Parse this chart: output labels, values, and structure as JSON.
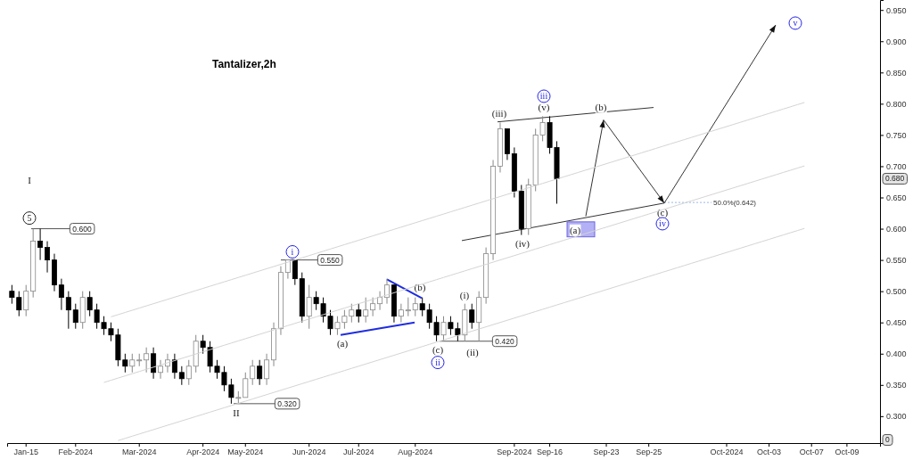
{
  "chart_data": {
    "type": "candlestick",
    "title": "Tantalizer,2h",
    "categories": [
      null,
      null,
      "Jan-15",
      null,
      null,
      null,
      null,
      null,
      null,
      "Feb-2024",
      null,
      null,
      null,
      null,
      null,
      null,
      null,
      null,
      "Mar-2024",
      null,
      null,
      null,
      null,
      null,
      null,
      null,
      null,
      "Apr-2024",
      null,
      null,
      null,
      null,
      null,
      "May-2024",
      null,
      null,
      null,
      null,
      null,
      null,
      null,
      null,
      "Jun-2024",
      null,
      null,
      null,
      null,
      null,
      null,
      "Jul-2024",
      null,
      null,
      null,
      null,
      null,
      null,
      null,
      "Aug-2024",
      null,
      null,
      null,
      null,
      null,
      null,
      null,
      null,
      null,
      null,
      null,
      null,
      null,
      "Sep-2024",
      null,
      null,
      null,
      null,
      "Sep-16",
      null,
      null,
      null,
      null,
      null,
      null,
      null,
      "Sep-23",
      null,
      null,
      null,
      null,
      null,
      "Sep-25",
      null,
      null,
      null,
      null,
      null,
      null,
      null,
      null,
      null,
      null,
      "Oct-2024",
      null,
      null,
      null,
      null,
      null,
      "Oct-03",
      null,
      null,
      null,
      null,
      null,
      "Oct-07",
      null,
      null,
      null,
      null,
      "Oct-09",
      null,
      null,
      null,
      null
    ],
    "ohlc": [
      [
        0.5,
        0.51,
        0.48,
        0.49
      ],
      [
        0.49,
        0.5,
        0.46,
        0.47
      ],
      [
        0.47,
        0.51,
        0.46,
        0.5
      ],
      [
        0.5,
        0.6,
        0.49,
        0.58
      ],
      [
        0.58,
        0.6,
        0.55,
        0.57
      ],
      [
        0.57,
        0.58,
        0.53,
        0.55
      ],
      [
        0.55,
        0.56,
        0.5,
        0.51
      ],
      [
        0.51,
        0.52,
        0.47,
        0.49
      ],
      [
        0.49,
        0.5,
        0.44,
        0.47
      ],
      [
        0.47,
        0.48,
        0.44,
        0.45
      ],
      [
        0.45,
        0.5,
        0.44,
        0.49
      ],
      [
        0.49,
        0.5,
        0.46,
        0.47
      ],
      [
        0.47,
        0.48,
        0.44,
        0.45
      ],
      [
        0.45,
        0.46,
        0.43,
        0.44
      ],
      [
        0.44,
        0.45,
        0.42,
        0.43
      ],
      [
        0.43,
        0.44,
        0.38,
        0.39
      ],
      [
        0.39,
        0.4,
        0.37,
        0.38
      ],
      [
        0.38,
        0.4,
        0.37,
        0.39
      ],
      [
        0.39,
        0.4,
        0.38,
        0.39
      ],
      [
        0.39,
        0.41,
        0.37,
        0.4
      ],
      [
        0.4,
        0.41,
        0.36,
        0.37
      ],
      [
        0.37,
        0.39,
        0.36,
        0.38
      ],
      [
        0.38,
        0.4,
        0.37,
        0.39
      ],
      [
        0.39,
        0.4,
        0.36,
        0.37
      ],
      [
        0.37,
        0.38,
        0.35,
        0.36
      ],
      [
        0.36,
        0.39,
        0.35,
        0.38
      ],
      [
        0.38,
        0.43,
        0.37,
        0.42
      ],
      [
        0.42,
        0.43,
        0.4,
        0.41
      ],
      [
        0.41,
        0.42,
        0.37,
        0.38
      ],
      [
        0.38,
        0.39,
        0.36,
        0.37
      ],
      [
        0.37,
        0.38,
        0.34,
        0.35
      ],
      [
        0.35,
        0.36,
        0.32,
        0.33
      ],
      [
        0.33,
        0.34,
        0.32,
        0.33
      ],
      [
        0.33,
        0.37,
        0.33,
        0.36
      ],
      [
        0.36,
        0.39,
        0.35,
        0.38
      ],
      [
        0.38,
        0.39,
        0.35,
        0.36
      ],
      [
        0.36,
        0.4,
        0.35,
        0.39
      ],
      [
        0.39,
        0.45,
        0.38,
        0.44
      ],
      [
        0.44,
        0.54,
        0.43,
        0.53
      ],
      [
        0.53,
        0.55,
        0.52,
        0.55
      ],
      [
        0.55,
        0.55,
        0.51,
        0.52
      ],
      [
        0.52,
        0.53,
        0.45,
        0.46
      ],
      [
        0.46,
        0.51,
        0.44,
        0.49
      ],
      [
        0.49,
        0.5,
        0.47,
        0.48
      ],
      [
        0.48,
        0.49,
        0.45,
        0.46
      ],
      [
        0.46,
        0.47,
        0.43,
        0.44
      ],
      [
        0.44,
        0.46,
        0.43,
        0.45
      ],
      [
        0.45,
        0.47,
        0.44,
        0.46
      ],
      [
        0.46,
        0.48,
        0.45,
        0.47
      ],
      [
        0.47,
        0.48,
        0.45,
        0.46
      ],
      [
        0.46,
        0.49,
        0.45,
        0.47
      ],
      [
        0.47,
        0.49,
        0.46,
        0.48
      ],
      [
        0.48,
        0.5,
        0.47,
        0.49
      ],
      [
        0.49,
        0.52,
        0.48,
        0.51
      ],
      [
        0.51,
        0.51,
        0.45,
        0.46
      ],
      [
        0.46,
        0.48,
        0.45,
        0.47
      ],
      [
        0.47,
        0.49,
        0.46,
        0.47
      ],
      [
        0.47,
        0.49,
        0.46,
        0.48
      ],
      [
        0.48,
        0.49,
        0.46,
        0.47
      ],
      [
        0.47,
        0.48,
        0.44,
        0.45
      ],
      [
        0.45,
        0.46,
        0.42,
        0.43
      ],
      [
        0.43,
        0.46,
        0.42,
        0.45
      ],
      [
        0.45,
        0.46,
        0.43,
        0.44
      ],
      [
        0.44,
        0.45,
        0.42,
        0.43
      ],
      [
        0.43,
        0.48,
        0.42,
        0.47
      ],
      [
        0.47,
        0.48,
        0.44,
        0.45
      ],
      [
        0.45,
        0.5,
        0.42,
        0.49
      ],
      [
        0.49,
        0.57,
        0.48,
        0.56
      ],
      [
        0.56,
        0.71,
        0.55,
        0.7
      ],
      [
        0.7,
        0.77,
        0.69,
        0.76
      ],
      [
        0.76,
        0.76,
        0.71,
        0.72
      ],
      [
        0.72,
        0.73,
        0.65,
        0.66
      ],
      [
        0.66,
        0.67,
        0.59,
        0.6
      ],
      [
        0.6,
        0.68,
        0.59,
        0.67
      ],
      [
        0.67,
        0.76,
        0.66,
        0.75
      ],
      [
        0.75,
        0.78,
        0.74,
        0.77
      ],
      [
        0.77,
        0.78,
        0.72,
        0.73
      ],
      [
        0.73,
        0.74,
        0.64,
        0.68
      ],
      null,
      null,
      null,
      null,
      null,
      null,
      null,
      null,
      null,
      null,
      null,
      null,
      null,
      null,
      null,
      null,
      null,
      null,
      null,
      null,
      null,
      null,
      null,
      null,
      null,
      null,
      null,
      null,
      null,
      null,
      null,
      null,
      null,
      null,
      null,
      null,
      null,
      null,
      null,
      null,
      null,
      null,
      null,
      null,
      null
    ],
    "series": [
      {
        "type": "line",
        "color": "#d4d4d4",
        "values": [
          null,
          null,
          null,
          null,
          null,
          null,
          null,
          null,
          null,
          null,
          null,
          null,
          null,
          null,
          0.459,
          0.4625,
          0.466,
          0.4695,
          0.473,
          0.4765,
          0.48,
          0.4835,
          0.487,
          0.4905,
          0.494,
          0.4975,
          0.501,
          0.5045,
          0.508,
          0.5115,
          0.515,
          0.5185,
          0.522,
          0.5255,
          0.529,
          0.5325,
          0.536,
          0.5395,
          0.543,
          0.5465,
          0.55,
          0.5535,
          0.557,
          0.5605,
          0.564,
          0.5675,
          0.571,
          0.5745,
          0.578,
          0.5815,
          0.585,
          0.5885,
          0.592,
          0.5955,
          0.599,
          0.6025,
          0.606,
          0.6095,
          0.613,
          0.6165,
          0.62,
          0.6235,
          0.627,
          0.6305,
          0.634,
          0.6375,
          0.641,
          0.6445,
          0.648,
          0.6515,
          0.655,
          0.6585,
          0.662,
          0.6655,
          0.669,
          0.6725,
          0.676,
          0.6795,
          0.683,
          0.6865,
          0.69,
          0.6935,
          0.697,
          0.7005,
          0.704,
          0.7075,
          0.711,
          0.7145,
          0.718,
          0.7215,
          0.725,
          0.7285,
          0.732,
          0.7355,
          0.739,
          0.7425,
          0.746,
          0.7495,
          0.753,
          0.7565,
          0.76,
          0.7635,
          0.767,
          0.7705,
          0.774,
          0.7775,
          0.781,
          0.7845,
          0.788,
          0.7915,
          0.795,
          0.7985,
          0.802,
          null,
          null,
          null,
          null,
          null,
          null,
          null,
          null,
          null,
          null
        ]
      },
      {
        "type": "line",
        "color": "#d4d4d4",
        "values": [
          null,
          null,
          null,
          null,
          null,
          null,
          null,
          null,
          null,
          null,
          null,
          null,
          null,
          0.354,
          0.3575,
          0.361,
          0.3645,
          0.368,
          0.3715,
          0.375,
          0.3785,
          0.382,
          0.3855,
          0.389,
          0.3925,
          0.396,
          0.3995,
          0.403,
          0.4065,
          0.41,
          0.4135,
          0.417,
          0.4205,
          0.424,
          0.4275,
          0.431,
          0.4345,
          0.438,
          0.4415,
          0.445,
          0.4485,
          0.452,
          0.4555,
          0.459,
          0.4625,
          0.466,
          0.4695,
          0.473,
          0.4765,
          0.48,
          0.4835,
          0.487,
          0.4905,
          0.494,
          0.4975,
          0.501,
          0.5045,
          0.508,
          0.5115,
          0.515,
          0.5185,
          0.522,
          0.5255,
          0.529,
          0.5325,
          0.536,
          0.5395,
          0.543,
          0.5465,
          0.55,
          0.5535,
          0.557,
          0.5605,
          0.564,
          0.5675,
          0.571,
          0.5745,
          0.578,
          0.5815,
          0.585,
          0.5885,
          0.592,
          0.5955,
          0.599,
          0.6025,
          0.606,
          0.6095,
          0.613,
          0.6165,
          0.62,
          0.6235,
          0.627,
          0.6305,
          0.634,
          0.6375,
          0.641,
          0.6445,
          0.648,
          0.6515,
          0.655,
          0.6585,
          0.662,
          0.6655,
          0.669,
          0.6725,
          0.676,
          0.6795,
          0.683,
          0.6865,
          0.69,
          0.6935,
          0.697,
          0.7005,
          null,
          null,
          null,
          null,
          null,
          null,
          null,
          null,
          null,
          null
        ]
      },
      {
        "type": "line",
        "color": "#d4d4d4",
        "values": [
          null,
          null,
          null,
          null,
          null,
          null,
          null,
          null,
          null,
          null,
          null,
          null,
          null,
          null,
          null,
          0.261,
          0.2645,
          0.268,
          0.2715,
          0.275,
          0.2785,
          0.282,
          0.2855,
          0.289,
          0.2925,
          0.296,
          0.2995,
          0.303,
          0.3065,
          0.31,
          0.3135,
          0.317,
          0.3205,
          0.324,
          0.3275,
          0.331,
          0.3345,
          0.338,
          0.3415,
          0.345,
          0.3485,
          0.352,
          0.3555,
          0.359,
          0.3625,
          0.366,
          0.3695,
          0.373,
          0.3765,
          0.38,
          0.3835,
          0.387,
          0.3905,
          0.394,
          0.3975,
          0.401,
          0.4045,
          0.408,
          0.4115,
          0.415,
          0.4185,
          0.422,
          0.4255,
          0.429,
          0.4325,
          0.436,
          0.4395,
          0.443,
          0.4465,
          0.45,
          0.4535,
          0.457,
          0.4605,
          0.464,
          0.4675,
          0.471,
          0.4745,
          0.478,
          0.4815,
          0.485,
          0.4885,
          0.492,
          0.4955,
          0.499,
          0.5025,
          0.506,
          0.5095,
          0.513,
          0.5165,
          0.52,
          0.5235,
          0.527,
          0.5305,
          0.534,
          0.5375,
          0.541,
          0.5445,
          0.548,
          0.5515,
          0.555,
          0.5585,
          0.562,
          0.5655,
          0.569,
          0.5725,
          0.576,
          0.5795,
          0.583,
          0.5865,
          0.59,
          0.5935,
          0.597,
          0.6005,
          null,
          null,
          null,
          null,
          null,
          null,
          null,
          null,
          null,
          null
        ]
      }
    ],
    "ylim": [
      0.257,
      0.966
    ],
    "yticks": [
      {
        "value": 0.3,
        "label": "0.300"
      },
      {
        "value": 0.35,
        "label": "0.350"
      },
      {
        "value": 0.4,
        "label": "0.400"
      },
      {
        "value": 0.45,
        "label": "0.450"
      },
      {
        "value": 0.5,
        "label": "0.500"
      },
      {
        "value": 0.55,
        "label": "0.550"
      },
      {
        "value": 0.6,
        "label": "0.600"
      },
      {
        "value": 0.65,
        "label": "0.650"
      },
      {
        "value": 0.7,
        "label": "0.700"
      },
      {
        "value": 0.75,
        "label": "0.750"
      },
      {
        "value": 0.8,
        "label": "0.800"
      },
      {
        "value": 0.85,
        "label": "0.850"
      },
      {
        "value": 0.9,
        "label": "0.900"
      },
      {
        "value": 0.95,
        "label": "0.950"
      }
    ],
    "annotations": [
      "I",
      "5",
      {
        "text": "0.600",
        "y": 0.6
      },
      "II",
      {
        "text": "0.320",
        "y": 0.32
      },
      "i",
      "0.550",
      "(a)",
      {
        "text": "(b)",
        "y": 0.49
      },
      "(c)",
      "ii",
      "(i)",
      "(ii)",
      {
        "text": "0.420",
        "y": 0.42
      },
      "(iii)",
      "(iv)",
      "(v)",
      "iii",
      "(a)",
      "(b)",
      "(c)",
      "iv",
      "v",
      "50.0%(0.642)",
      "0.680",
      "0"
    ]
  }
}
